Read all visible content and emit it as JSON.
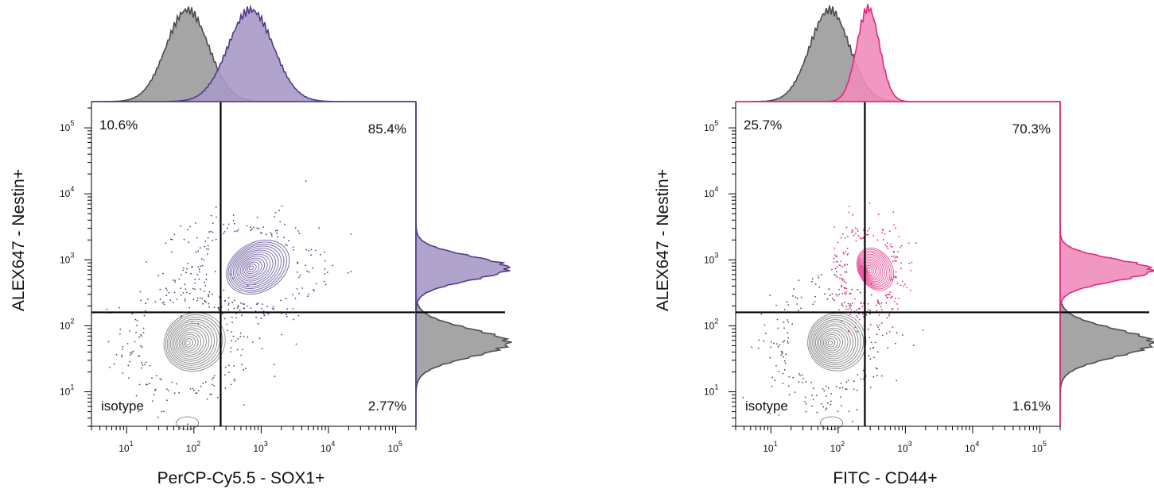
{
  "chart_data": [
    {
      "type": "scatter",
      "subtype": "flow-cytometry-contour-with-histograms",
      "xlabel": "PerCP-Cy5.5 - SOX1+",
      "ylabel": "ALEX647 - Nestin+",
      "x_scale": "log",
      "y_scale": "log",
      "xlim": [
        3,
        200000
      ],
      "ylim": [
        3,
        250000
      ],
      "x_ticks": [
        10,
        100,
        1000,
        10000,
        100000
      ],
      "y_ticks": [
        10,
        100,
        1000,
        10000,
        100000
      ],
      "tick_label_base": "10",
      "tick_label_exponents": [
        "1",
        "2",
        "3",
        "4",
        "5"
      ],
      "gate": {
        "x": 250,
        "y": 160
      },
      "quadrants": [
        {
          "name": "upper-left",
          "label": "10.6%"
        },
        {
          "name": "upper-right",
          "label": "85.4%"
        },
        {
          "name": "lower-right",
          "label": "2.77%"
        }
      ],
      "series": [
        {
          "name": "isotype",
          "color": "#4a4a4a",
          "fill": "#9b9b9b",
          "center": [
            80,
            55
          ],
          "spread_log": [
            0.3,
            0.28
          ]
        },
        {
          "name": "",
          "color": "#4e3a8c",
          "fill": "#a99ac6",
          "center": [
            700,
            750
          ],
          "spread_log": [
            0.32,
            0.24
          ]
        }
      ]
    },
    {
      "type": "scatter",
      "subtype": "flow-cytometry-contour-with-histograms",
      "xlabel": "FITC - CD44+",
      "ylabel": "ALEX647 - Nestin+",
      "x_scale": "log",
      "y_scale": "log",
      "xlim": [
        3,
        200000
      ],
      "ylim": [
        3,
        250000
      ],
      "x_ticks": [
        10,
        100,
        1000,
        10000,
        100000
      ],
      "y_ticks": [
        10,
        100,
        1000,
        10000,
        100000
      ],
      "tick_label_base": "10",
      "tick_label_exponents": [
        "1",
        "2",
        "3",
        "4",
        "5"
      ],
      "gate": {
        "x": 250,
        "y": 160
      },
      "quadrants": [
        {
          "name": "upper-left",
          "label": "25.7%"
        },
        {
          "name": "upper-right",
          "label": "70.3%"
        },
        {
          "name": "lower-right",
          "label": "1.61%"
        }
      ],
      "series": [
        {
          "name": "isotype",
          "color": "#4a4a4a",
          "fill": "#9b9b9b",
          "center": [
            75,
            55
          ],
          "spread_log": [
            0.28,
            0.28
          ]
        },
        {
          "name": "",
          "color": "#e0267f",
          "fill": "#f08dbb",
          "center": [
            280,
            700
          ],
          "spread_log": [
            0.16,
            0.22
          ]
        }
      ]
    }
  ],
  "isotype_label": "isotype"
}
